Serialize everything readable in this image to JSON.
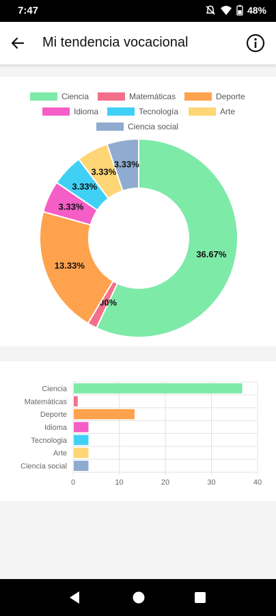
{
  "status": {
    "time": "7:47",
    "battery": "48%"
  },
  "header": {
    "title": "Mi tendencia vocacional",
    "back_icon": "arrow-left-icon",
    "info_icon": "info-icon"
  },
  "chart_data": [
    {
      "type": "pie",
      "categories": [
        "Ciencia",
        "Matemáticas",
        "Deporte",
        "Idioma",
        "Tecnología",
        "Arte",
        "Ciencia social"
      ],
      "values": [
        36.67,
        1.0,
        13.33,
        3.33,
        3.33,
        3.33,
        3.33
      ],
      "labels": [
        "36.67%",
        "1.00%",
        "13.33%",
        "3.33%",
        "3.33%",
        "3.33%",
        "3.33%"
      ],
      "colors": [
        "#7eeaa8",
        "#f2708a",
        "#ffa24d",
        "#f45ec6",
        "#40d0f5",
        "#ffd675",
        "#8fabcf"
      ],
      "legend": "top",
      "hole": "donut"
    },
    {
      "type": "bar",
      "orientation": "horizontal",
      "categories": [
        "Ciencia",
        "Matemáticas",
        "Deporte",
        "Idioma",
        "Tecnologia",
        "Arte",
        "Ciencia social"
      ],
      "values": [
        36.67,
        1.0,
        13.33,
        3.33,
        3.33,
        3.33,
        3.33
      ],
      "colors": [
        "#7eeaa8",
        "#f2708a",
        "#ffa24d",
        "#f45ec6",
        "#40d0f5",
        "#ffd675",
        "#8fabcf"
      ],
      "xlim": [
        0,
        40
      ],
      "xticks": [
        "0",
        "10",
        "20",
        "30",
        "40"
      ],
      "grid": true
    }
  ],
  "nav": {
    "back_icon": "triangle-back-icon",
    "home_icon": "circle-home-icon",
    "recents_icon": "square-recents-icon"
  }
}
